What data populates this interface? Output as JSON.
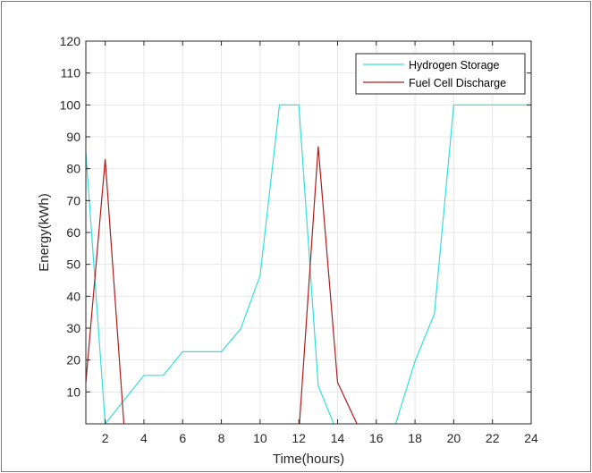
{
  "chart_data": {
    "type": "line",
    "xlabel": "Time(hours)",
    "ylabel": "Energy(kWh)",
    "xlim": [
      1,
      24
    ],
    "ylim": [
      0,
      120
    ],
    "xticks": [
      2,
      4,
      6,
      8,
      10,
      12,
      14,
      16,
      18,
      20,
      22,
      24
    ],
    "yticks": [
      10,
      20,
      30,
      40,
      50,
      60,
      70,
      80,
      90,
      100,
      110,
      120
    ],
    "grid": true,
    "legend_position": "top-right",
    "series": [
      {
        "name": "Hydrogen Storage",
        "color": "#33dddd",
        "x": [
          1,
          2,
          3,
          4,
          5,
          6,
          7,
          8,
          9,
          10,
          11,
          12,
          13,
          14,
          15,
          16,
          17,
          18,
          19,
          20,
          21,
          22,
          23,
          24
        ],
        "y": [
          85,
          0,
          7.6,
          15.2,
          15.2,
          22.6,
          22.6,
          22.6,
          29.8,
          46.5,
          100,
          100,
          12,
          -3,
          -3,
          -3,
          0,
          19.6,
          34.5,
          100,
          100,
          100,
          100,
          100
        ]
      },
      {
        "name": "Fuel Cell Discharge",
        "color": "#b01c1c",
        "x": [
          1,
          2,
          3,
          4,
          5,
          6,
          7,
          8,
          9,
          10,
          11,
          12,
          13,
          14,
          15,
          16,
          17,
          18,
          19,
          20,
          21,
          22,
          23,
          24
        ],
        "y": [
          13,
          83,
          -3,
          -3,
          -3,
          -3,
          -3,
          -3,
          -3,
          -3,
          -3,
          -3,
          87,
          13,
          0,
          -3,
          -3,
          -3,
          -3,
          -3,
          -3,
          -3,
          -3,
          -3
        ]
      }
    ]
  }
}
